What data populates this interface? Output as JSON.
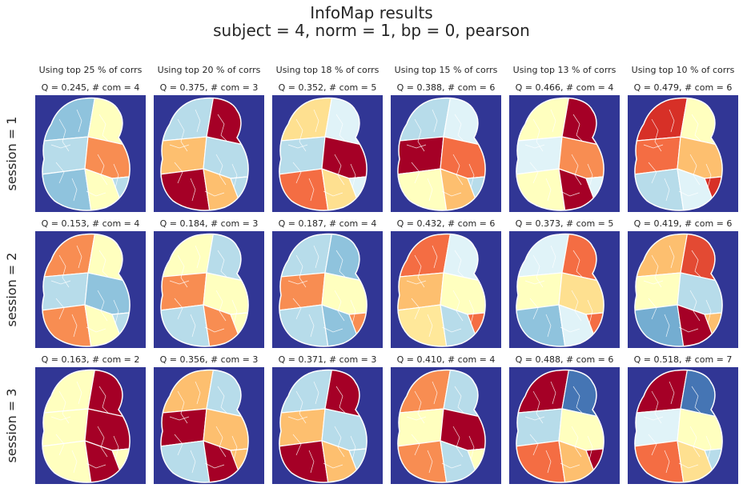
{
  "figure": {
    "title_line1": "InfoMap results",
    "title_line2": "subject = 4,   norm = 1,   bp = 0,   pearson",
    "colors": {
      "background": "#313695",
      "boundaries": "#ffffff",
      "palette": [
        "#313695",
        "#4575b4",
        "#74add1",
        "#abd9e9",
        "#e0f3f8",
        "#ffffbf",
        "#fee090",
        "#fdae61",
        "#f46d43",
        "#d73027",
        "#a50026"
      ]
    }
  },
  "chart_data": {
    "type": "heatmap",
    "columns": [
      "Using top 25 % of corrs",
      "Using top 20 % of corrs",
      "Using top 18 % of corrs",
      "Using top 15 % of corrs",
      "Using top 13 % of corrs",
      "Using top 10 % of corrs"
    ],
    "rows": [
      "session = 1",
      "session = 2",
      "session = 3"
    ],
    "panels": [
      [
        {
          "label": "Q = 0.245,  # com = 4",
          "Q": 0.245,
          "com": 4,
          "colors": [
            "#8fc3dd",
            "#ffffbf",
            "#b7dcea",
            "#f88d52"
          ]
        },
        {
          "label": "Q = 0.375,  # com = 3",
          "Q": 0.375,
          "com": 3,
          "colors": [
            "#fdbf6f",
            "#b7dcea",
            "#a50026"
          ]
        },
        {
          "label": "Q = 0.352,  # com = 5",
          "Q": 0.352,
          "com": 5,
          "colors": [
            "#a50026",
            "#f46d43",
            "#fee090",
            "#e0f3f8",
            "#b7dcea"
          ]
        },
        {
          "label": "Q = 0.388,  # com = 6",
          "Q": 0.388,
          "com": 6,
          "colors": [
            "#f46d43",
            "#ffffbf",
            "#fdbf6f",
            "#b7dcea",
            "#e0f3f8",
            "#a50026"
          ]
        },
        {
          "label": "Q = 0.466,  # com = 4",
          "Q": 0.466,
          "com": 4,
          "colors": [
            "#ffffbf",
            "#a50026",
            "#e0f3f8",
            "#f88d52"
          ]
        },
        {
          "label": "Q = 0.479,  # com = 6",
          "Q": 0.479,
          "com": 6,
          "colors": [
            "#ffffbf",
            "#f46d43",
            "#fdbf6f",
            "#b7dcea",
            "#e0f3f8",
            "#d73027"
          ]
        }
      ],
      [
        {
          "label": "Q = 0.153,  # com = 4",
          "Q": 0.153,
          "com": 4,
          "colors": [
            "#8fc3dd",
            "#f88d52",
            "#ffffbf",
            "#b7dcea"
          ]
        },
        {
          "label": "Q = 0.184,  # com = 3",
          "Q": 0.184,
          "com": 3,
          "colors": [
            "#b7dcea",
            "#f88d52",
            "#ffffbf"
          ]
        },
        {
          "label": "Q = 0.187,  # com = 4",
          "Q": 0.187,
          "com": 4,
          "colors": [
            "#8fc3dd",
            "#f88d52",
            "#ffffbf",
            "#b7dcea"
          ]
        },
        {
          "label": "Q = 0.432,  # com = 6",
          "Q": 0.432,
          "com": 6,
          "colors": [
            "#fdbf6f",
            "#ffffbf",
            "#ffe89a",
            "#b7dcea",
            "#f46d43",
            "#e0f3f8"
          ]
        },
        {
          "label": "Q = 0.373,  # com = 5",
          "Q": 0.373,
          "com": 5,
          "colors": [
            "#e0f3f8",
            "#f46d43",
            "#ffffbf",
            "#fee090",
            "#8fc3dd"
          ]
        },
        {
          "label": "Q = 0.419,  # com = 6",
          "Q": 0.419,
          "com": 6,
          "colors": [
            "#fdbf6f",
            "#e34a33",
            "#ffffbf",
            "#b7dcea",
            "#74add1",
            "#a50026"
          ]
        }
      ],
      [
        {
          "label": "Q = 0.163,  # com = 2",
          "Q": 0.163,
          "com": 2,
          "colors": [
            "#ffffbf",
            "#a50026"
          ]
        },
        {
          "label": "Q = 0.356,  # com = 3",
          "Q": 0.356,
          "com": 3,
          "colors": [
            "#fdbf6f",
            "#b7dcea",
            "#a50026"
          ]
        },
        {
          "label": "Q = 0.371,  # com = 3",
          "Q": 0.371,
          "com": 3,
          "colors": [
            "#fdbf6f",
            "#b7dcea",
            "#a50026"
          ]
        },
        {
          "label": "Q = 0.410,  # com = 4",
          "Q": 0.41,
          "com": 4,
          "colors": [
            "#a50026",
            "#f88d52",
            "#b7dcea",
            "#ffffbf"
          ]
        },
        {
          "label": "Q = 0.488,  # com = 6",
          "Q": 0.488,
          "com": 6,
          "colors": [
            "#a50026",
            "#4575b4",
            "#b7dcea",
            "#ffffbf",
            "#f46d43",
            "#fdbf6f"
          ]
        },
        {
          "label": "Q = 0.518,  # com = 7",
          "Q": 0.518,
          "com": 7,
          "colors": [
            "#a50026",
            "#4575b4",
            "#e0f3f8",
            "#ffffbf",
            "#f46d43",
            "#fee090",
            "#b7dcea"
          ]
        }
      ]
    ]
  }
}
